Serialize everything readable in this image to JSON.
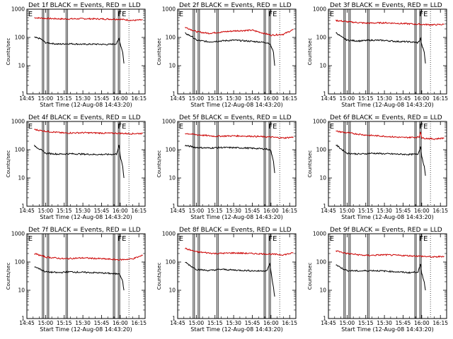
{
  "figure": {
    "background": "#ffffff",
    "series_colors": {
      "events": "#000000",
      "lld": "#cc0000"
    }
  },
  "chart_data": [
    {
      "type": "line",
      "title": "Det 1f BLACK = Events, RED = LLD",
      "xlabel": "Start Time (12-Aug-08 14:43:20)",
      "ylabel": "Counts/sec",
      "yscale": "log",
      "ylim": [
        1,
        1000
      ],
      "xlim": [
        "14:45",
        "16:20"
      ],
      "ytick_labels": [
        "1",
        "10",
        "100",
        "1000"
      ],
      "xtick_labels": [
        "14:45",
        "15:00",
        "15:15",
        "15:30",
        "15:45",
        "16:00",
        "16:15"
      ],
      "grid": false,
      "events_x": [
        "14:51",
        "14:56",
        "15:00",
        "15:10",
        "15:20",
        "15:30",
        "15:40",
        "15:50",
        "15:57",
        "15:59",
        "16:00",
        "16:02",
        "16:03"
      ],
      "events_y": [
        100,
        90,
        65,
        58,
        60,
        57,
        58,
        56,
        60,
        90,
        60,
        30,
        12
      ],
      "lld_x": [
        "14:51",
        "15:00",
        "15:15",
        "15:30",
        "15:45",
        "16:00",
        "16:10",
        "16:18"
      ],
      "lld_y": [
        500,
        470,
        450,
        460,
        450,
        440,
        400,
        420
      ],
      "flag_lines": [
        "14:58",
        "15:02",
        "15:17",
        "15:55",
        "15:59"
      ],
      "flag_letters": [
        {
          "x": "14:46",
          "text": "E"
        },
        {
          "x": "15:58",
          "text": "FE"
        }
      ]
    },
    {
      "type": "line",
      "title": "Det 2f BLACK = Events, RED = LLD",
      "xlabel": "Start Time (12-Aug-08 14:43:20)",
      "ylabel": "Counts/sec",
      "yscale": "log",
      "ylim": [
        1,
        1000
      ],
      "xlim": [
        "14:45",
        "16:20"
      ],
      "ytick_labels": [
        "1",
        "10",
        "100",
        "1000"
      ],
      "xtick_labels": [
        "14:45",
        "15:00",
        "15:15",
        "15:30",
        "15:45",
        "16:00",
        "16:15"
      ],
      "grid": false,
      "events_x": [
        "14:51",
        "14:56",
        "15:00",
        "15:10",
        "15:20",
        "15:30",
        "15:40",
        "15:50",
        "15:57",
        "15:59",
        "16:00",
        "16:02",
        "16:03"
      ],
      "events_y": [
        140,
        110,
        80,
        70,
        75,
        80,
        75,
        70,
        65,
        60,
        50,
        30,
        10
      ],
      "lld_x": [
        "14:51",
        "15:00",
        "15:10",
        "15:20",
        "15:30",
        "15:45",
        "16:00",
        "16:10",
        "16:18"
      ],
      "lld_y": [
        230,
        160,
        140,
        155,
        170,
        180,
        120,
        130,
        190
      ],
      "flag_lines": [
        "14:58",
        "15:02",
        "15:17",
        "15:55",
        "15:59"
      ],
      "flag_letters": [
        {
          "x": "14:46",
          "text": "E"
        },
        {
          "x": "15:58",
          "text": "FE"
        }
      ]
    },
    {
      "type": "line",
      "title": "Det 3f BLACK = Events, RED = LLD",
      "xlabel": "Start Time (12-Aug-08 14:43:20)",
      "ylabel": "Counts/sec",
      "yscale": "log",
      "ylim": [
        1,
        1000
      ],
      "xlim": [
        "14:45",
        "16:20"
      ],
      "ytick_labels": [
        "1",
        "10",
        "100",
        "1000"
      ],
      "xtick_labels": [
        "14:45",
        "15:00",
        "15:15",
        "15:30",
        "15:45",
        "16:00",
        "16:15"
      ],
      "grid": false,
      "events_x": [
        "14:51",
        "14:56",
        "15:00",
        "15:10",
        "15:20",
        "15:30",
        "15:40",
        "15:50",
        "15:57",
        "15:59",
        "16:00",
        "16:02",
        "16:03"
      ],
      "events_y": [
        150,
        100,
        80,
        75,
        80,
        78,
        72,
        70,
        65,
        90,
        55,
        30,
        12
      ],
      "lld_x": [
        "14:51",
        "15:00",
        "15:15",
        "15:30",
        "15:45",
        "16:00",
        "16:10",
        "16:18"
      ],
      "lld_y": [
        400,
        360,
        320,
        330,
        310,
        290,
        280,
        290
      ],
      "flag_lines": [
        "14:58",
        "15:02",
        "15:17",
        "15:55",
        "15:59"
      ],
      "flag_letters": [
        {
          "x": "14:46",
          "text": "E"
        },
        {
          "x": "15:58",
          "text": "FE"
        }
      ]
    },
    {
      "type": "line",
      "title": "Det 4f BLACK = Events, RED = LLD",
      "xlabel": "Start Time (12-Aug-08 14:43:20)",
      "ylabel": "Counts/sec",
      "yscale": "log",
      "ylim": [
        1,
        1000
      ],
      "xlim": [
        "14:45",
        "16:20"
      ],
      "ytick_labels": [
        "1",
        "10",
        "100",
        "1000"
      ],
      "xtick_labels": [
        "14:45",
        "15:00",
        "15:15",
        "15:30",
        "15:45",
        "16:00",
        "16:15"
      ],
      "grid": false,
      "events_x": [
        "14:51",
        "14:56",
        "15:00",
        "15:10",
        "15:20",
        "15:30",
        "15:40",
        "15:50",
        "15:57",
        "15:59",
        "16:00",
        "16:02",
        "16:03"
      ],
      "events_y": [
        140,
        100,
        75,
        70,
        72,
        70,
        68,
        68,
        70,
        140,
        60,
        25,
        10
      ],
      "lld_x": [
        "14:51",
        "15:00",
        "15:15",
        "15:30",
        "15:45",
        "16:00",
        "16:10",
        "16:18"
      ],
      "lld_y": [
        520,
        450,
        390,
        400,
        390,
        380,
        370,
        380
      ],
      "flag_lines": [
        "14:58",
        "15:02",
        "15:17",
        "15:55",
        "15:59"
      ],
      "flag_letters": [
        {
          "x": "14:46",
          "text": "E"
        },
        {
          "x": "15:58",
          "text": "FE"
        }
      ]
    },
    {
      "type": "line",
      "title": "Det 5f BLACK = Events, RED = LLD",
      "xlabel": "Start Time (12-Aug-08 14:43:20)",
      "ylabel": "Counts/sec",
      "yscale": "log",
      "ylim": [
        1,
        1000
      ],
      "xlim": [
        "14:45",
        "16:20"
      ],
      "ytick_labels": [
        "1",
        "10",
        "100",
        "1000"
      ],
      "xtick_labels": [
        "14:45",
        "15:00",
        "15:15",
        "15:30",
        "15:45",
        "16:00",
        "16:15"
      ],
      "grid": false,
      "events_x": [
        "14:51",
        "14:56",
        "15:00",
        "15:10",
        "15:20",
        "15:30",
        "15:40",
        "15:50",
        "15:57",
        "15:59",
        "16:00",
        "16:02",
        "16:03"
      ],
      "events_y": [
        140,
        130,
        120,
        115,
        120,
        118,
        115,
        110,
        105,
        100,
        90,
        40,
        15
      ],
      "lld_x": [
        "14:51",
        "15:00",
        "15:15",
        "15:30",
        "15:45",
        "16:00",
        "16:10",
        "16:18"
      ],
      "lld_y": [
        380,
        340,
        300,
        310,
        300,
        280,
        260,
        280
      ],
      "flag_lines": [
        "14:58",
        "15:02",
        "15:17",
        "15:55",
        "15:59"
      ],
      "flag_letters": [
        {
          "x": "14:46",
          "text": "E"
        },
        {
          "x": "15:58",
          "text": "FE"
        }
      ]
    },
    {
      "type": "line",
      "title": "Det 6f BLACK = Events, RED = LLD",
      "xlabel": "Start Time (12-Aug-08 14:43:20)",
      "ylabel": "Counts/sec",
      "yscale": "log",
      "ylim": [
        1,
        1000
      ],
      "xlim": [
        "14:45",
        "16:20"
      ],
      "ytick_labels": [
        "1",
        "10",
        "100",
        "1000"
      ],
      "xtick_labels": [
        "14:45",
        "15:00",
        "15:15",
        "15:30",
        "15:45",
        "16:00",
        "16:15"
      ],
      "grid": false,
      "events_x": [
        "14:51",
        "14:56",
        "15:00",
        "15:10",
        "15:20",
        "15:30",
        "15:40",
        "15:50",
        "15:57",
        "15:59",
        "16:00",
        "16:02",
        "16:03"
      ],
      "events_y": [
        150,
        100,
        75,
        70,
        75,
        72,
        70,
        68,
        70,
        130,
        60,
        25,
        12
      ],
      "lld_x": [
        "14:51",
        "15:00",
        "15:15",
        "15:30",
        "15:45",
        "15:58",
        "15:59",
        "16:00",
        "16:10",
        "16:18"
      ],
      "lld_y": [
        450,
        400,
        330,
        300,
        270,
        280,
        450,
        260,
        240,
        260
      ],
      "flag_lines": [
        "14:58",
        "15:02",
        "15:17",
        "15:55",
        "15:59"
      ],
      "flag_letters": [
        {
          "x": "14:46",
          "text": "E"
        },
        {
          "x": "15:58",
          "text": "FE"
        }
      ]
    },
    {
      "type": "line",
      "title": "Det 7f BLACK = Events, RED = LLD",
      "xlabel": "Start Time (12-Aug-08 14:43:20)",
      "ylabel": "Counts/sec",
      "yscale": "log",
      "ylim": [
        1,
        1000
      ],
      "xlim": [
        "14:45",
        "16:20"
      ],
      "ytick_labels": [
        "1",
        "10",
        "100",
        "1000"
      ],
      "xtick_labels": [
        "14:45",
        "15:00",
        "15:15",
        "15:30",
        "15:45",
        "16:00",
        "16:15"
      ],
      "grid": false,
      "events_x": [
        "14:51",
        "14:56",
        "15:00",
        "15:10",
        "15:20",
        "15:30",
        "15:40",
        "15:50",
        "15:57",
        "15:59",
        "16:00",
        "16:02",
        "16:03"
      ],
      "events_y": [
        70,
        55,
        45,
        42,
        45,
        43,
        42,
        40,
        38,
        40,
        35,
        20,
        10
      ],
      "lld_x": [
        "14:51",
        "15:00",
        "15:15",
        "15:30",
        "15:45",
        "16:00",
        "16:10",
        "16:18"
      ],
      "lld_y": [
        200,
        150,
        130,
        140,
        130,
        120,
        130,
        170
      ],
      "flag_lines": [
        "14:58",
        "15:02",
        "15:17",
        "15:55",
        "15:59"
      ],
      "flag_letters": [
        {
          "x": "14:46",
          "text": "E"
        },
        {
          "x": "15:58",
          "text": "FE"
        }
      ]
    },
    {
      "type": "line",
      "title": "Det 8f BLACK = Events, RED = LLD",
      "xlabel": "Start Time (12-Aug-08 14:43:20)",
      "ylabel": "Counts/sec",
      "yscale": "log",
      "ylim": [
        1,
        1000
      ],
      "xlim": [
        "14:45",
        "16:20"
      ],
      "ytick_labels": [
        "1",
        "10",
        "100",
        "1000"
      ],
      "xtick_labels": [
        "14:45",
        "15:00",
        "15:15",
        "15:30",
        "15:45",
        "16:00",
        "16:15"
      ],
      "grid": false,
      "events_x": [
        "14:51",
        "14:56",
        "15:00",
        "15:10",
        "15:20",
        "15:30",
        "15:40",
        "15:50",
        "15:57",
        "15:59",
        "16:00",
        "16:02",
        "16:03"
      ],
      "events_y": [
        100,
        70,
        55,
        50,
        55,
        52,
        50,
        48,
        50,
        90,
        45,
        12,
        6
      ],
      "lld_x": [
        "14:51",
        "15:00",
        "15:15",
        "15:30",
        "15:45",
        "16:00",
        "16:10",
        "16:18"
      ],
      "lld_y": [
        300,
        230,
        200,
        210,
        200,
        190,
        180,
        210
      ],
      "flag_lines": [
        "14:58",
        "15:02",
        "15:17",
        "15:55",
        "15:59"
      ],
      "flag_letters": [
        {
          "x": "14:46",
          "text": "E"
        },
        {
          "x": "15:58",
          "text": "FE"
        }
      ]
    },
    {
      "type": "line",
      "title": "Det 9f BLACK = Events, RED = LLD",
      "xlabel": "Start Time (12-Aug-08 14:43:20)",
      "ylabel": "Counts/sec",
      "yscale": "log",
      "ylim": [
        1,
        1000
      ],
      "xlim": [
        "14:45",
        "16:20"
      ],
      "ytick_labels": [
        "1",
        "10",
        "100",
        "1000"
      ],
      "xtick_labels": [
        "14:45",
        "15:00",
        "15:15",
        "15:30",
        "15:45",
        "16:00",
        "16:15"
      ],
      "grid": false,
      "events_x": [
        "14:51",
        "14:56",
        "15:00",
        "15:10",
        "15:20",
        "15:30",
        "15:40",
        "15:50",
        "15:57",
        "15:59",
        "16:00",
        "16:02",
        "16:03"
      ],
      "events_y": [
        80,
        60,
        50,
        48,
        50,
        48,
        45,
        42,
        45,
        80,
        40,
        20,
        10
      ],
      "lld_x": [
        "14:51",
        "15:00",
        "15:15",
        "15:30",
        "15:45",
        "16:00",
        "16:10",
        "16:18"
      ],
      "lld_y": [
        250,
        200,
        170,
        180,
        170,
        160,
        150,
        160
      ],
      "flag_lines": [
        "14:58",
        "15:02",
        "15:17",
        "15:55",
        "15:59"
      ],
      "flag_letters": [
        {
          "x": "14:46",
          "text": "E"
        },
        {
          "x": "15:58",
          "text": "FE"
        }
      ]
    }
  ]
}
